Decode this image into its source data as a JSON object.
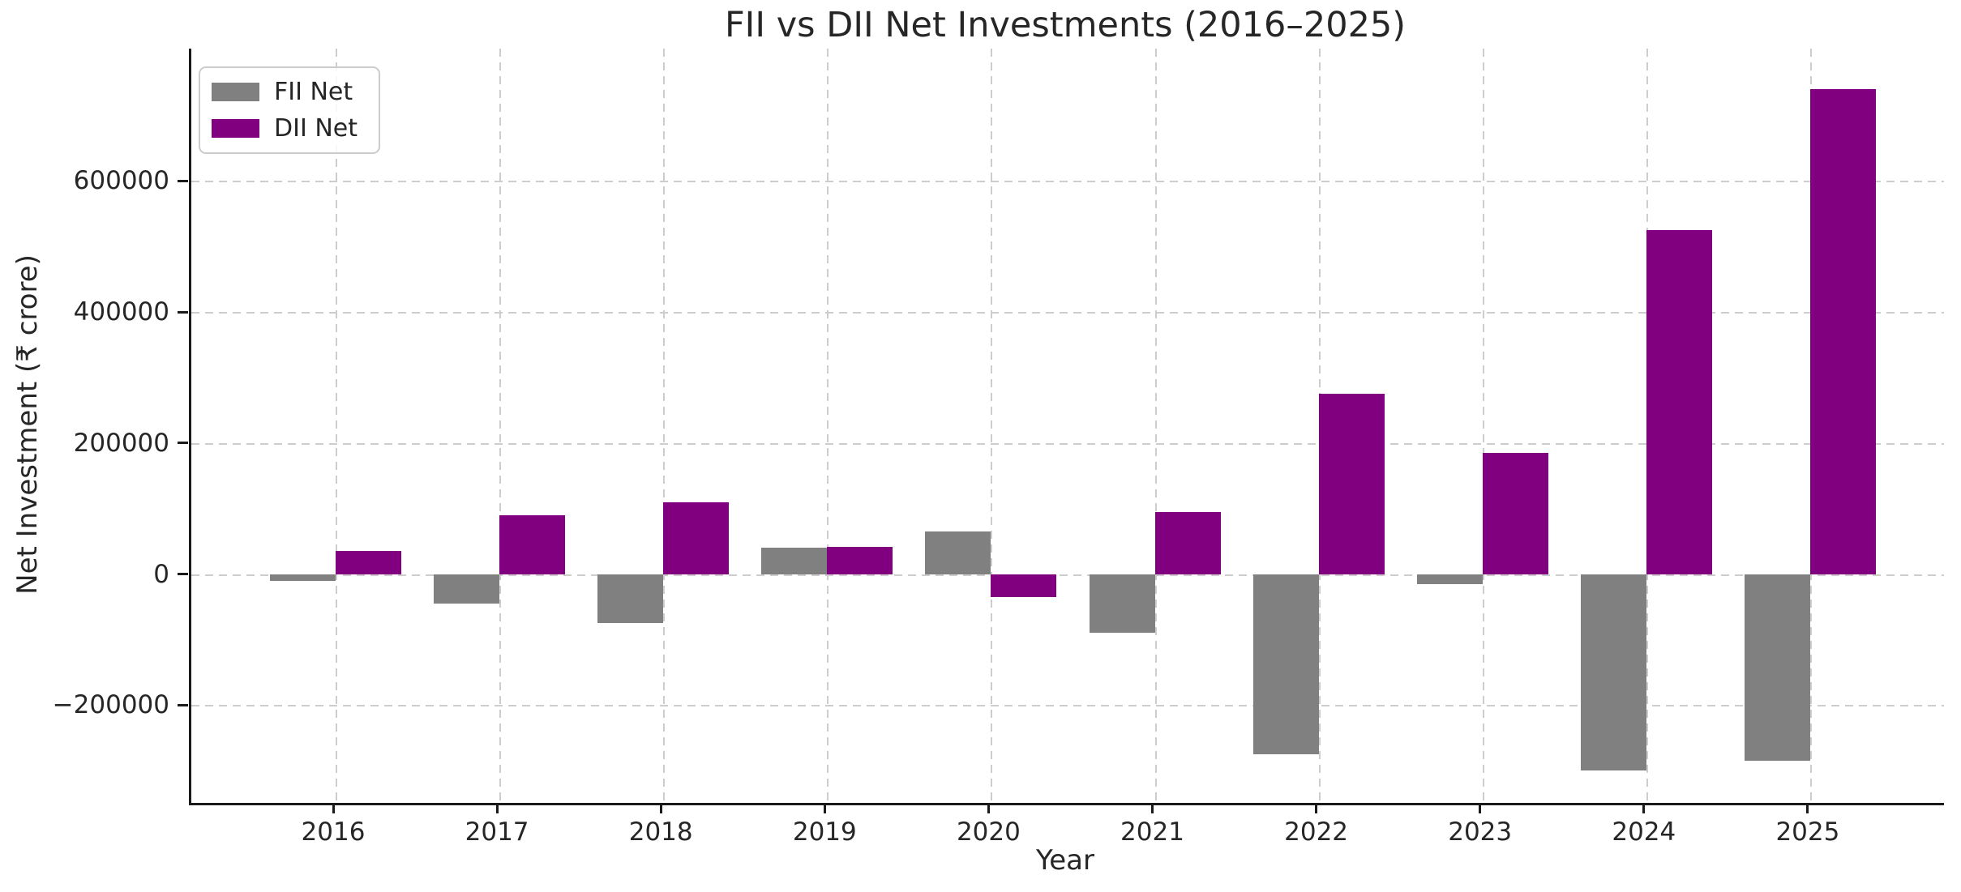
{
  "figure": {
    "title": "FII vs DII Net Investments (2016–2025)"
  },
  "chart_data": {
    "type": "bar",
    "title": "FII vs DII Net Investments (2016–2025)",
    "xlabel": "Year",
    "ylabel": "Net Investment (₹ crore)",
    "categories": [
      "2016",
      "2017",
      "2018",
      "2019",
      "2020",
      "2021",
      "2022",
      "2023",
      "2024",
      "2025"
    ],
    "series": [
      {
        "name": "FII Net",
        "color": "#808080",
        "values": [
          -10000,
          -45000,
          -75000,
          40000,
          65000,
          -90000,
          -275000,
          -15000,
          -300000,
          -285000
        ]
      },
      {
        "name": "DII Net",
        "color": "#800080",
        "values": [
          35000,
          90000,
          110000,
          42000,
          -35000,
          95000,
          275000,
          185000,
          525000,
          740000
        ]
      }
    ],
    "yticks": [
      -200000,
      0,
      200000,
      400000,
      600000
    ],
    "ytick_labels": [
      "−200000",
      "0",
      "200000",
      "400000",
      "600000"
    ],
    "ylim": [
      -349000,
      802000
    ],
    "grid": true,
    "grid_style": "dashed",
    "legend_position": "upper left",
    "bar_orientation": "vertical"
  },
  "legend": {
    "items": [
      {
        "label": "FII Net",
        "color": "#808080"
      },
      {
        "label": "DII Net",
        "color": "#800080"
      }
    ]
  },
  "colors": {
    "background": "#ffffff",
    "text": "#262626",
    "grid": "#cdcdcd",
    "spine": "#1a1a1a",
    "fii_bar": "#808080",
    "dii_bar": "#800080"
  }
}
